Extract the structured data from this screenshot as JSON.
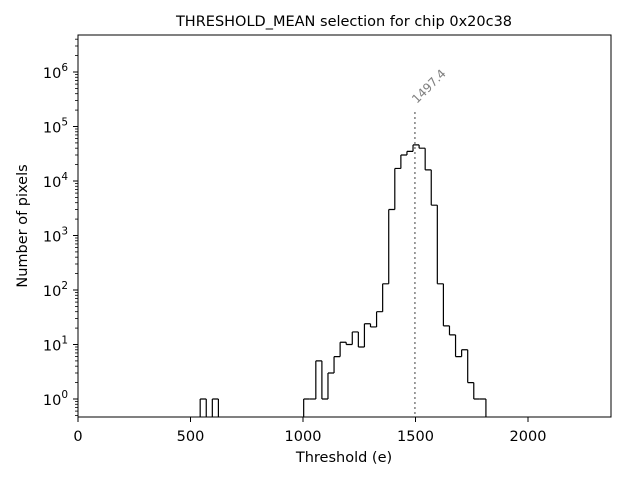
{
  "chart_data": {
    "type": "histogram",
    "title": "THRESHOLD_MEAN selection for chip 0x20c38",
    "xlabel": "Threshold (e)",
    "ylabel": "Number of pixels",
    "xlim": [
      0,
      2360
    ],
    "ylim": [
      0.5,
      4000000
    ],
    "yscale": "log",
    "grid": false,
    "x_ticks": [
      {
        "value": 0,
        "label": "0"
      },
      {
        "value": 500,
        "label": "500"
      },
      {
        "value": 1000,
        "label": "1000"
      },
      {
        "value": 1500,
        "label": "1500"
      },
      {
        "value": 2000,
        "label": "2000"
      }
    ],
    "y_ticks": [
      {
        "value": 1,
        "base": "10",
        "exp": "0"
      },
      {
        "value": 10,
        "base": "10",
        "exp": "1"
      },
      {
        "value": 100,
        "base": "10",
        "exp": "2"
      },
      {
        "value": 1000,
        "base": "10",
        "exp": "3"
      },
      {
        "value": 10000,
        "base": "10",
        "exp": "4"
      },
      {
        "value": 100000,
        "base": "10",
        "exp": "5"
      },
      {
        "value": 1000000,
        "base": "10",
        "exp": "6"
      }
    ],
    "bin_width": 27,
    "bins_start": [
      543,
      570,
      597,
      624,
      1003,
      1030,
      1057,
      1084,
      1111,
      1138,
      1165,
      1192,
      1219,
      1246,
      1273,
      1300,
      1327,
      1354,
      1381,
      1408,
      1435,
      1462,
      1489,
      1516,
      1543,
      1570,
      1597,
      1624,
      1651,
      1678,
      1705,
      1732,
      1759,
      1786
    ],
    "counts": [
      1,
      0,
      1,
      0,
      1,
      1,
      5,
      1,
      3,
      6,
      11,
      10,
      17,
      9,
      24,
      21,
      40,
      130,
      3000,
      17000,
      30000,
      35000,
      46000,
      40000,
      16000,
      3600,
      130,
      22,
      15,
      6,
      8,
      2,
      1,
      1
    ],
    "annotation": {
      "value": 1497.4,
      "label": "1497.4",
      "color": "#808080"
    },
    "line_color": "#000000"
  }
}
